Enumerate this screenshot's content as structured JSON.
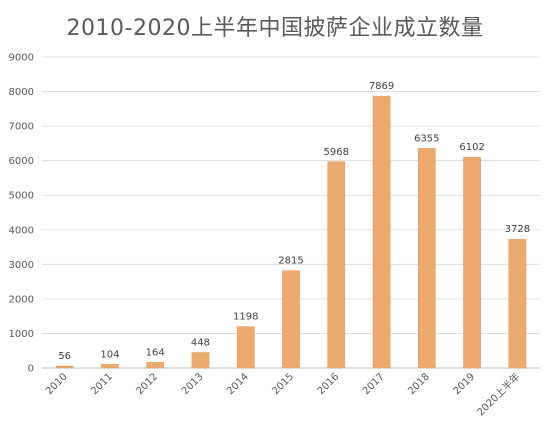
{
  "chart_data": {
    "type": "bar",
    "title": "2010-2020上半年中国披萨企业成立数量",
    "xlabel": "",
    "ylabel": "",
    "categories": [
      "2010",
      "2011",
      "2012",
      "2013",
      "2014",
      "2015",
      "2016",
      "2017",
      "2018",
      "2019",
      "2020上半年"
    ],
    "values": [
      56,
      104,
      164,
      448,
      1198,
      2815,
      5968,
      7869,
      6355,
      6102,
      3728
    ],
    "ylim": [
      0,
      9000
    ],
    "yticks": [
      0,
      1000,
      2000,
      3000,
      4000,
      5000,
      6000,
      7000,
      8000,
      9000
    ],
    "grid": true,
    "legend": "none",
    "colors": {
      "bar": "#EBAA70",
      "bar_edge": "#E09A5C",
      "grid": "#D9D9D9",
      "text": "#595959"
    }
  }
}
